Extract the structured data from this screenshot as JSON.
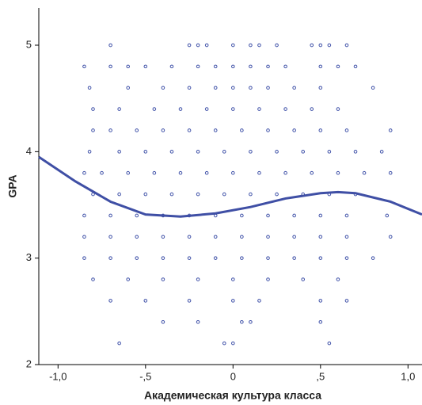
{
  "chart_data": {
    "type": "scatter",
    "x_label": "Академическая культура класса",
    "y_label": "GPA",
    "xlim": [
      -1.11,
      1.08
    ],
    "ylim": [
      2,
      5.35
    ],
    "xticks": [
      {
        "value": -1,
        "label": "-1,0"
      },
      {
        "value": -0.5,
        "label": "-,5"
      },
      0,
      {
        "value": 0.5,
        "label": ",5"
      },
      {
        "value": 1,
        "label": "1,0"
      }
    ],
    "yticks": [
      2,
      3,
      4,
      5
    ],
    "series": [
      {
        "type": "scatter",
        "color": "#3f51a8",
        "x": [
          -0.7,
          -0.25,
          -0.2,
          -0.15,
          0.0,
          0.1,
          0.15,
          0.25,
          0.45,
          0.5,
          0.55,
          0.65,
          -0.85,
          -0.7,
          -0.6,
          -0.5,
          -0.35,
          -0.2,
          -0.1,
          0.0,
          0.1,
          0.2,
          0.3,
          0.5,
          0.6,
          0.7,
          -0.82,
          -0.6,
          -0.4,
          -0.25,
          -0.1,
          0.0,
          0.1,
          0.2,
          0.35,
          0.5,
          0.8,
          -0.8,
          -0.65,
          -0.45,
          -0.3,
          -0.15,
          0.0,
          0.15,
          0.3,
          0.45,
          0.6,
          -0.8,
          -0.7,
          -0.55,
          -0.4,
          -0.25,
          -0.1,
          0.05,
          0.2,
          0.35,
          0.5,
          0.65,
          0.9,
          -0.82,
          -0.65,
          -0.5,
          -0.35,
          -0.2,
          -0.05,
          0.1,
          0.25,
          0.4,
          0.55,
          0.7,
          0.85,
          -0.85,
          -0.75,
          -0.6,
          -0.45,
          -0.3,
          -0.15,
          0.0,
          0.15,
          0.3,
          0.45,
          0.6,
          0.75,
          0.9,
          -0.8,
          -0.65,
          -0.5,
          -0.35,
          -0.2,
          -0.05,
          0.1,
          0.25,
          0.4,
          0.55,
          0.7,
          -0.85,
          -0.7,
          -0.55,
          -0.4,
          -0.25,
          -0.1,
          0.05,
          0.2,
          0.35,
          0.5,
          0.65,
          0.88,
          -0.85,
          -0.7,
          -0.55,
          -0.4,
          -0.25,
          -0.1,
          0.05,
          0.2,
          0.35,
          0.5,
          0.65,
          0.9,
          -0.85,
          -0.7,
          -0.55,
          -0.4,
          -0.25,
          -0.1,
          0.05,
          0.2,
          0.35,
          0.5,
          0.65,
          0.8,
          -0.8,
          -0.6,
          -0.4,
          -0.2,
          0.0,
          0.2,
          0.4,
          0.6,
          -0.7,
          -0.5,
          -0.25,
          0.0,
          0.15,
          0.5,
          0.65,
          -0.4,
          -0.2,
          0.05,
          0.1,
          0.5,
          -0.65,
          -0.05,
          0.0,
          0.55
        ],
        "values": [
          5,
          5,
          5,
          5,
          5,
          5,
          5,
          5,
          5,
          5,
          5,
          5,
          4.8,
          4.8,
          4.8,
          4.8,
          4.8,
          4.8,
          4.8,
          4.8,
          4.8,
          4.8,
          4.8,
          4.8,
          4.8,
          4.8,
          4.6,
          4.6,
          4.6,
          4.6,
          4.6,
          4.6,
          4.6,
          4.6,
          4.6,
          4.6,
          4.6,
          4.4,
          4.4,
          4.4,
          4.4,
          4.4,
          4.4,
          4.4,
          4.4,
          4.4,
          4.4,
          4.2,
          4.2,
          4.2,
          4.2,
          4.2,
          4.2,
          4.2,
          4.2,
          4.2,
          4.2,
          4.2,
          4.2,
          4,
          4,
          4,
          4,
          4,
          4,
          4,
          4,
          4,
          4,
          4,
          4,
          3.8,
          3.8,
          3.8,
          3.8,
          3.8,
          3.8,
          3.8,
          3.8,
          3.8,
          3.8,
          3.8,
          3.8,
          3.8,
          3.6,
          3.6,
          3.6,
          3.6,
          3.6,
          3.6,
          3.6,
          3.6,
          3.6,
          3.6,
          3.6,
          3.4,
          3.4,
          3.4,
          3.4,
          3.4,
          3.4,
          3.4,
          3.4,
          3.4,
          3.4,
          3.4,
          3.4,
          3.2,
          3.2,
          3.2,
          3.2,
          3.2,
          3.2,
          3.2,
          3.2,
          3.2,
          3.2,
          3.2,
          3.2,
          3,
          3,
          3,
          3,
          3,
          3,
          3,
          3,
          3,
          3,
          3,
          3,
          2.8,
          2.8,
          2.8,
          2.8,
          2.8,
          2.8,
          2.8,
          2.8,
          2.6,
          2.6,
          2.6,
          2.6,
          2.6,
          2.6,
          2.6,
          2.4,
          2.4,
          2.4,
          2.4,
          2.4,
          2.2,
          2.2,
          2.2,
          2.2
        ]
      },
      {
        "type": "line",
        "color": "#3f4fa5",
        "x": [
          -1.11,
          -0.9,
          -0.7,
          -0.5,
          -0.3,
          -0.1,
          0.1,
          0.3,
          0.5,
          0.6,
          0.7,
          0.9,
          1.08
        ],
        "values": [
          3.95,
          3.72,
          3.53,
          3.41,
          3.39,
          3.42,
          3.48,
          3.56,
          3.61,
          3.62,
          3.61,
          3.53,
          3.41
        ]
      }
    ]
  }
}
